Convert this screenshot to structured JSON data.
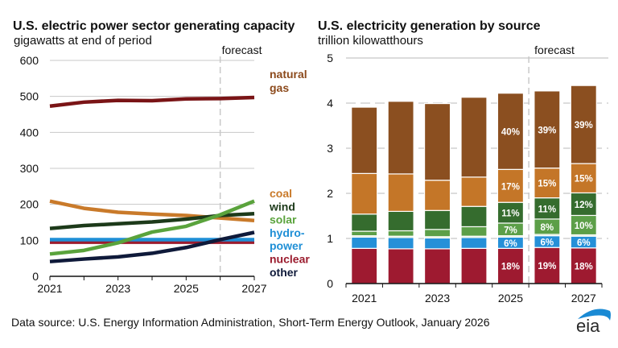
{
  "footer": {
    "source": "Data source: U.S. Energy Information Administration, Short-Term Energy Outlook, January 2026",
    "logo_text": "eia"
  },
  "colors": {
    "natural_gas_line": "#7a1416",
    "natural_gas_label": "#8c4a1c",
    "coal": "#c97a2a",
    "wind": "#1d3a1a",
    "solar": "#5aa33c",
    "hydro": "#1f8fd6",
    "nuclear": "#9b1c2e",
    "other": "#0f1a3a",
    "bar_natural_gas": "#8b4f20",
    "bar_coal": "#c47628",
    "bar_wind": "#356c2e",
    "bar_solar": "#5c9f48",
    "bar_other": "#b8d6a0",
    "bar_hydro": "#2590d8",
    "bar_nuclear": "#9e1a30",
    "grid": "#c8c8c8",
    "logo_blue": "#1a8ad4"
  },
  "chart_data": [
    {
      "type": "line",
      "title": "U.S. electric power sector generating capacity",
      "subtitle": "gigawatts at end of period",
      "xlabel": "",
      "ylabel": "gigawatts",
      "x": [
        2021,
        2022,
        2023,
        2024,
        2025,
        2026,
        2027
      ],
      "x_tick_labels": [
        "2021",
        "2023",
        "2025",
        "2027"
      ],
      "y_ticks": [
        0,
        100,
        200,
        300,
        400,
        500,
        600
      ],
      "ylim": [
        0,
        600
      ],
      "grid": true,
      "forecast_start": 2026,
      "forecast_label": "forecast",
      "series": [
        {
          "name": "natural gas",
          "label_lines": [
            "natural",
            "gas"
          ],
          "color_key": "natural_gas_line",
          "label_color_key": "natural_gas_label",
          "values": [
            473,
            484,
            489,
            488,
            493,
            494,
            497
          ]
        },
        {
          "name": "coal",
          "label_lines": [
            "coal"
          ],
          "color_key": "coal",
          "values": [
            209,
            189,
            178,
            173,
            169,
            162,
            155
          ]
        },
        {
          "name": "wind",
          "label_lines": [
            "wind"
          ],
          "color_key": "wind",
          "values": [
            133,
            141,
            146,
            151,
            159,
            169,
            174
          ]
        },
        {
          "name": "solar",
          "label_lines": [
            "solar"
          ],
          "color_key": "solar",
          "values": [
            62,
            72,
            93,
            123,
            139,
            171,
            209
          ]
        },
        {
          "name": "hydropower",
          "label_lines": [
            "hydro-",
            "power"
          ],
          "color_key": "hydro",
          "values": [
            102,
            102,
            102,
            102,
            102,
            102,
            102
          ]
        },
        {
          "name": "nuclear",
          "label_lines": [
            "nuclear"
          ],
          "color_key": "nuclear",
          "values": [
            95,
            95,
            95,
            95,
            95,
            95,
            95
          ]
        },
        {
          "name": "other",
          "label_lines": [
            "other"
          ],
          "color_key": "other",
          "values": [
            41,
            48,
            54,
            64,
            80,
            102,
            122
          ]
        }
      ]
    },
    {
      "type": "bar",
      "stacked": true,
      "title": "U.S. electricity generation by source",
      "subtitle": "trillion kilowatthours",
      "xlabel": "",
      "ylabel": "trillion kilowatthours",
      "categories": [
        "2021",
        "2022",
        "2023",
        "2024",
        "2025",
        "2026",
        "2027"
      ],
      "x_tick_labels": [
        "2021",
        "",
        "2023",
        "",
        "2025",
        "",
        "2027"
      ],
      "y_ticks": [
        0,
        1,
        2,
        3,
        4,
        5
      ],
      "ylim": [
        0,
        5
      ],
      "grid": true,
      "forecast_start_index": 5,
      "forecast_label": "forecast",
      "series": [
        {
          "name": "nuclear",
          "color_key": "bar_nuclear",
          "values": [
            0.78,
            0.77,
            0.77,
            0.78,
            0.78,
            0.8,
            0.79
          ],
          "labels": [
            "",
            "",
            "",
            "",
            "18%",
            "19%",
            "18%"
          ]
        },
        {
          "name": "hydropower",
          "color_key": "bar_hydro",
          "values": [
            0.25,
            0.25,
            0.24,
            0.24,
            0.25,
            0.26,
            0.26
          ],
          "labels": [
            "",
            "",
            "",
            "",
            "6%",
            "6%",
            "6%"
          ]
        },
        {
          "name": "other",
          "color_key": "bar_other",
          "values": [
            0.03,
            0.03,
            0.03,
            0.03,
            0.03,
            0.03,
            0.03
          ],
          "labels": [
            "",
            "",
            "",
            "",
            "",
            "",
            ""
          ]
        },
        {
          "name": "solar",
          "color_key": "bar_solar",
          "values": [
            0.1,
            0.12,
            0.16,
            0.21,
            0.28,
            0.34,
            0.43
          ],
          "labels": [
            "",
            "",
            "",
            "",
            "7%",
            "8%",
            "10%"
          ]
        },
        {
          "name": "wind",
          "color_key": "bar_wind",
          "values": [
            0.38,
            0.43,
            0.42,
            0.45,
            0.46,
            0.47,
            0.5
          ],
          "labels": [
            "",
            "",
            "",
            "",
            "11%",
            "11%",
            "12%"
          ]
        },
        {
          "name": "coal",
          "color_key": "bar_coal",
          "values": [
            0.9,
            0.83,
            0.67,
            0.65,
            0.73,
            0.66,
            0.65
          ],
          "labels": [
            "",
            "",
            "",
            "",
            "17%",
            "15%",
            "15%"
          ]
        },
        {
          "name": "natural gas",
          "color_key": "bar_natural_gas",
          "values": [
            1.47,
            1.61,
            1.7,
            1.77,
            1.69,
            1.71,
            1.73
          ],
          "labels": [
            "",
            "",
            "",
            "",
            "40%",
            "39%",
            "39%"
          ]
        }
      ]
    }
  ]
}
